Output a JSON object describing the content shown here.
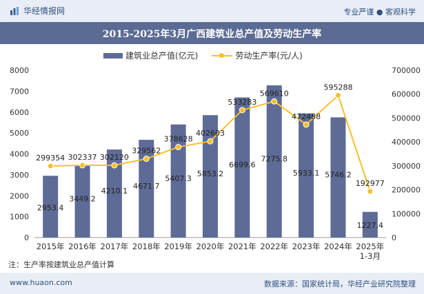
{
  "header": {
    "brand": "华经情报网",
    "tagline": "专业严谨 ● 客观科学"
  },
  "title": "2015-2025年3月广西建筑业总产值及劳动生产率",
  "note": "注：生产率按建筑业总产值计算",
  "footer": {
    "url": "www.huaon.com",
    "source": "数据来源：国家统计局，华经产业研究院整理"
  },
  "colors": {
    "bar": "#5d6b96",
    "line": "#f5c02a",
    "header_bg": "#e9eef6",
    "title_bg": "#5b6b93"
  },
  "chart_data": {
    "type": "bar+line",
    "categories": [
      "2015年",
      "2016年",
      "2017年",
      "2018年",
      "2019年",
      "2020年",
      "2021年",
      "2022年",
      "2023年",
      "2024年",
      "2025年\n1-3月"
    ],
    "series": [
      {
        "name": "建筑业总产值(亿元)",
        "type": "bar",
        "axis": "left",
        "values": [
          2953.4,
          3449.2,
          4210.1,
          4671.7,
          5407.3,
          5853.2,
          6699.6,
          7275.8,
          5933.1,
          5746.2,
          1227.4
        ]
      },
      {
        "name": "劳动生产率(元/人)",
        "type": "line",
        "axis": "right",
        "values": [
          299354,
          302337,
          302120,
          329562,
          378628,
          402603,
          533283,
          569610,
          472488,
          595288,
          192977
        ]
      }
    ],
    "y_left": {
      "min": 0,
      "max": 8000,
      "step": 1000
    },
    "y_right": {
      "min": 0,
      "max": 700000,
      "step": 100000
    }
  }
}
